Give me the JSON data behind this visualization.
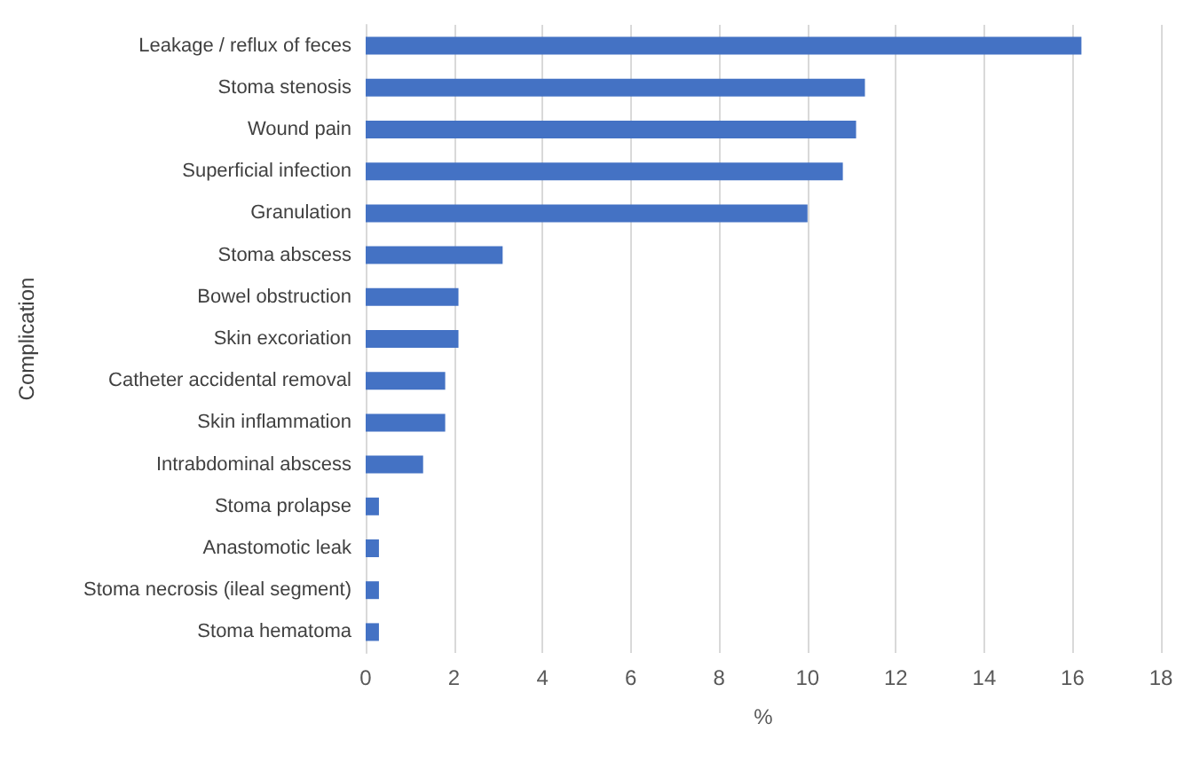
{
  "chart_data": {
    "type": "bar",
    "orientation": "horizontal",
    "xlabel": "%",
    "ylabel": "Complication",
    "categories": [
      "Leakage / reflux of feces",
      "Stoma stenosis",
      "Wound pain",
      "Superficial infection",
      "Granulation",
      "Stoma abscess",
      "Bowel obstruction",
      "Skin excoriation",
      "Catheter accidental removal",
      "Skin inflammation",
      "Intrabdominal abscess",
      "Stoma prolapse",
      "Anastomotic leak",
      "Stoma necrosis (ileal segment)",
      "Stoma hematoma"
    ],
    "values": [
      16.2,
      11.3,
      11.1,
      10.8,
      10.0,
      3.1,
      2.1,
      2.1,
      1.8,
      1.8,
      1.3,
      0.3,
      0.3,
      0.3,
      0.3
    ],
    "color": "#4472c4",
    "xlim": [
      0,
      18
    ],
    "xticks": [
      0,
      2,
      4,
      6,
      8,
      10,
      12,
      14,
      16,
      18
    ],
    "grid": "x"
  }
}
